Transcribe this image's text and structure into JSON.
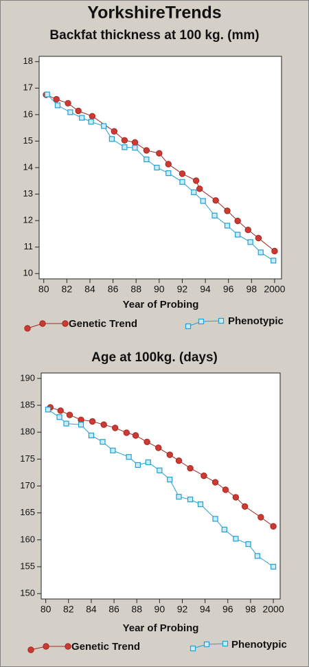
{
  "page_title": "YorkshireTrends",
  "chart_data": [
    {
      "type": "line",
      "title": "Backfat thickness at 100 kg. (mm)",
      "x_label": "Year of Probing",
      "xlim": [
        79.6,
        100.6
      ],
      "xticks": [
        80,
        82,
        84,
        86,
        88,
        90,
        92,
        94,
        96,
        98,
        {
          "value": 100,
          "label": "2000"
        }
      ],
      "ylim": [
        9.8,
        18.2
      ],
      "yticks": [
        10,
        11,
        12,
        13,
        14,
        15,
        16,
        17,
        18
      ],
      "series": [
        {
          "name": "Genetic Trend",
          "color": "#a3261f",
          "marker": "circle",
          "x": [
            80.2,
            81.1,
            82.1,
            83.0,
            84.2,
            86.1,
            87.0,
            87.9,
            88.9,
            90.0,
            90.8,
            92.0,
            93.2,
            93.5,
            94.9,
            95.9,
            96.8,
            97.7,
            98.6,
            100.0
          ],
          "values": [
            16.75,
            16.58,
            16.43,
            16.14,
            15.94,
            15.37,
            15.03,
            14.95,
            14.65,
            14.54,
            14.13,
            13.77,
            13.51,
            13.2,
            12.76,
            12.37,
            11.99,
            11.65,
            11.34,
            10.85
          ]
        },
        {
          "name": "Phenotypic",
          "color": "#1f9fd6",
          "marker": "square",
          "x": [
            80.3,
            81.2,
            82.3,
            83.3,
            84.1,
            85.2,
            85.9,
            87.0,
            87.9,
            88.9,
            89.8,
            90.8,
            92.0,
            93.0,
            93.8,
            94.8,
            95.9,
            96.8,
            97.9,
            98.8,
            99.9
          ],
          "values": [
            16.76,
            16.35,
            16.09,
            15.88,
            15.73,
            15.57,
            15.08,
            14.77,
            14.75,
            14.31,
            14.0,
            13.79,
            13.46,
            13.07,
            12.74,
            12.19,
            11.81,
            11.47,
            11.19,
            10.8,
            10.49
          ]
        }
      ]
    },
    {
      "type": "line",
      "title": "Age at 100kg. (days)",
      "x_label": "Year of Probing",
      "xlim": [
        79.6,
        100.6
      ],
      "xticks": [
        80,
        82,
        84,
        86,
        88,
        90,
        92,
        94,
        96,
        98,
        {
          "value": 100,
          "label": "2000"
        }
      ],
      "ylim": [
        149,
        191
      ],
      "yticks": [
        150,
        155,
        160,
        165,
        170,
        175,
        180,
        185,
        190
      ],
      "series": [
        {
          "name": "Genetic Trend",
          "color": "#a3261f",
          "marker": "circle",
          "x": [
            80.4,
            81.3,
            82.1,
            83.1,
            84.1,
            85.1,
            86.1,
            87.1,
            87.9,
            88.9,
            89.9,
            90.9,
            91.7,
            92.7,
            93.9,
            94.9,
            95.8,
            96.7,
            97.5,
            98.9,
            100.0
          ],
          "values": [
            184.6,
            184.0,
            183.2,
            182.3,
            182.0,
            181.4,
            180.8,
            179.9,
            179.4,
            178.2,
            177.1,
            175.8,
            174.7,
            173.3,
            171.9,
            170.7,
            169.3,
            167.9,
            166.2,
            164.2,
            162.5
          ]
        },
        {
          "name": "Phenotypic",
          "color": "#1f9fd6",
          "marker": "square",
          "x": [
            80.2,
            81.2,
            81.8,
            83.1,
            84.0,
            85.0,
            85.9,
            87.3,
            88.1,
            89.0,
            90.0,
            90.9,
            91.7,
            92.7,
            93.6,
            94.9,
            95.7,
            96.7,
            97.8,
            98.6,
            100.0
          ],
          "values": [
            184.2,
            182.8,
            181.6,
            181.4,
            179.4,
            178.2,
            176.6,
            175.4,
            173.9,
            174.4,
            172.9,
            171.2,
            168.0,
            167.5,
            166.6,
            163.9,
            161.9,
            160.2,
            159.2,
            157.0,
            155.0
          ]
        }
      ]
    }
  ]
}
